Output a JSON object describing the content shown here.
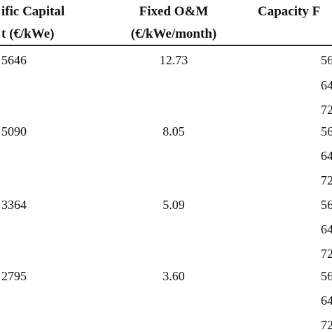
{
  "table": {
    "headers": {
      "col1_line1": "ific Capital",
      "col1_line2": "t (€/kWe)",
      "col2_line1": "Fixed O&M",
      "col2_line2": "(€/kWe/month)",
      "col3_line1": "Capacity F"
    },
    "rows": [
      {
        "capital": "5646",
        "om": "12.73",
        "cf": [
          "56",
          "64",
          "72"
        ]
      },
      {
        "capital": "5090",
        "om": "8.05",
        "cf": [
          "56",
          "64",
          "72"
        ]
      },
      {
        "capital": "3364",
        "om": "5.09",
        "cf": [
          "56",
          "64",
          "72"
        ]
      },
      {
        "capital": "2795",
        "om": "3.60",
        "cf": [
          "56",
          "64",
          "72"
        ]
      }
    ]
  }
}
